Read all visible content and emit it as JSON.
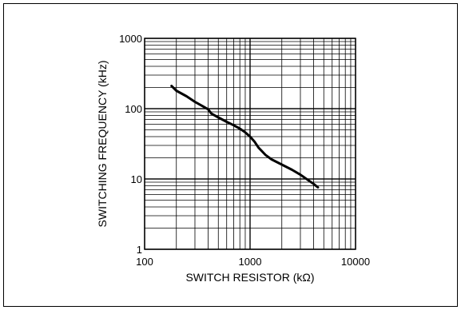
{
  "chart_data": {
    "type": "line",
    "xlabel": "SWITCH RESISTOR (kΩ)",
    "ylabel": "SWITCHING FREQUENCY (kHz)",
    "xscale": "log",
    "yscale": "log",
    "xlim": [
      100,
      10000
    ],
    "ylim": [
      1,
      1000
    ],
    "grid": true,
    "x_tick_labels": [
      "100",
      "1000",
      "10000"
    ],
    "y_tick_labels": [
      "1",
      "10",
      "100",
      "1000"
    ],
    "series": [
      {
        "x": [
          180,
          200,
          250,
          300,
          350,
          400,
          430,
          500,
          600,
          700,
          800,
          900,
          1000,
          1100,
          1200,
          1400,
          1600,
          2000,
          2500,
          3000,
          3500,
          4000,
          4400
        ],
        "y": [
          210,
          180,
          150,
          125,
          110,
          98,
          85,
          75,
          65,
          58,
          52,
          46,
          40,
          34,
          28,
          22,
          19,
          16,
          13.5,
          11.5,
          9.8,
          8.5,
          7.6
        ]
      }
    ]
  }
}
